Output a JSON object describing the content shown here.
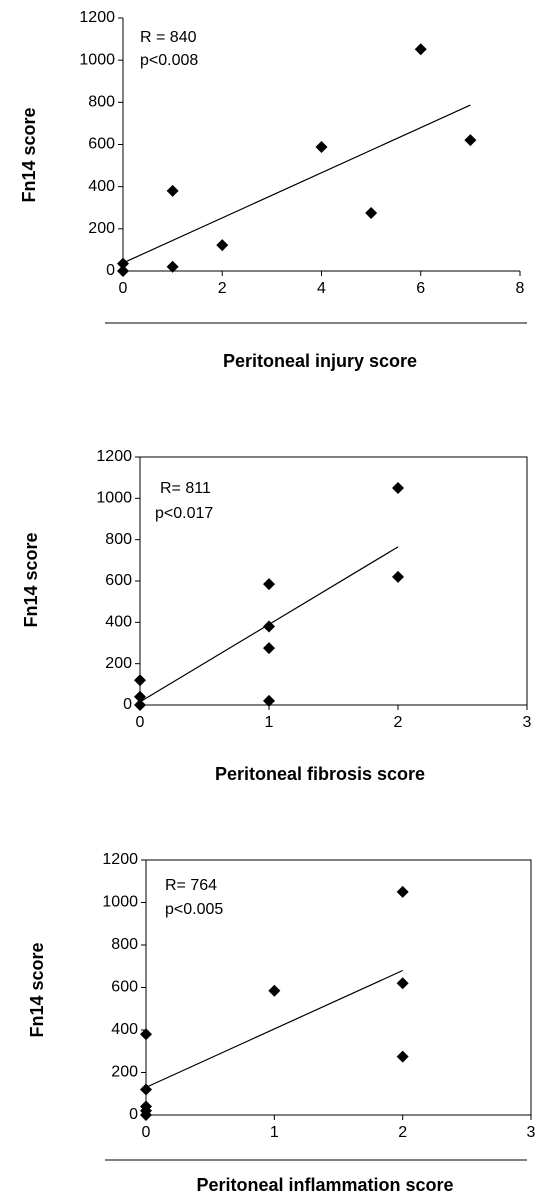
{
  "chart_data": [
    {
      "type": "scatter",
      "ylabel": "Fn14 score",
      "xlabel": "Peritoneal injury score",
      "annotations": [
        "R = 840",
        "p<0.008"
      ],
      "x": [
        0,
        0,
        1,
        1,
        2,
        4,
        5,
        6,
        7
      ],
      "values": [
        35,
        0,
        380,
        20,
        123,
        588,
        275,
        1052,
        621
      ],
      "trendline": {
        "x": [
          0,
          7
        ],
        "y": [
          38,
          787
        ]
      },
      "color": "#000000",
      "xlim": [
        0,
        8
      ],
      "xticks": [
        0,
        2,
        4,
        6,
        8
      ],
      "ylim": [
        0,
        1200
      ],
      "yticks": [
        0,
        200,
        400,
        600,
        800,
        1000,
        1200
      ],
      "box": false
    },
    {
      "type": "scatter",
      "ylabel": "Fn14 score",
      "xlabel": "Peritoneal fibrosis score",
      "annotations": [
        "R= 811",
        "p<0.017"
      ],
      "x": [
        0,
        0,
        0,
        1,
        1,
        1,
        1,
        2,
        2
      ],
      "values": [
        120,
        40,
        0,
        585,
        380,
        275,
        20,
        1050,
        620
      ],
      "trendline": {
        "x": [
          0,
          2
        ],
        "y": [
          15,
          765
        ]
      },
      "color": "#000000",
      "xlim": [
        0,
        3
      ],
      "xticks": [
        0,
        1,
        2,
        3
      ],
      "ylim": [
        0,
        1200
      ],
      "yticks": [
        0,
        200,
        400,
        600,
        800,
        1000,
        1200
      ],
      "box": true
    },
    {
      "type": "scatter",
      "ylabel": "Fn14 score",
      "xlabel": "Peritoneal inflammation score",
      "annotations": [
        "R= 764",
        "p<0.005"
      ],
      "x": [
        0,
        0,
        0,
        0,
        0,
        1,
        2,
        2,
        2
      ],
      "values": [
        380,
        120,
        40,
        20,
        0,
        585,
        1050,
        620,
        275
      ],
      "trendline": {
        "x": [
          0,
          2
        ],
        "y": [
          130,
          680
        ]
      },
      "color": "#000000",
      "xlim": [
        0,
        3
      ],
      "xticks": [
        0,
        1,
        2,
        3
      ],
      "ylim": [
        0,
        1200
      ],
      "yticks": [
        0,
        200,
        400,
        600,
        800,
        1000,
        1200
      ],
      "box": true
    }
  ]
}
